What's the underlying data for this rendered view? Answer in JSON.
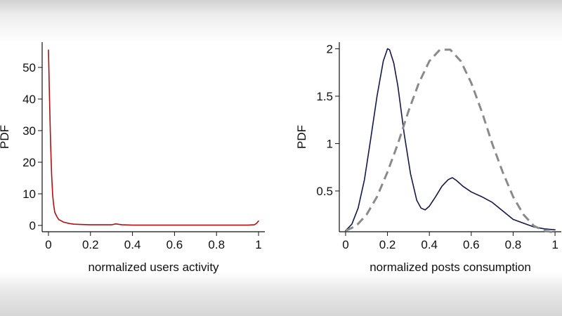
{
  "chart_data": [
    {
      "type": "line",
      "xlabel": "normalized users activity",
      "ylabel": "PDF",
      "xlim": [
        -0.03,
        1.03
      ],
      "ylim": [
        -2,
        58
      ],
      "xticks": [
        0,
        0.2,
        0.4,
        0.6,
        0.8,
        1
      ],
      "xtick_labels": [
        "0",
        "0.2",
        "0.4",
        "0.6",
        "0.8",
        "1"
      ],
      "yticks": [
        0,
        10,
        20,
        30,
        40,
        50
      ],
      "ytick_labels": [
        "0",
        "10",
        "20",
        "30",
        "40",
        "50"
      ],
      "grid": false,
      "series": [
        {
          "color": "#b01010",
          "style": "solid",
          "x": [
            0.0,
            0.005,
            0.01,
            0.015,
            0.02,
            0.025,
            0.03,
            0.04,
            0.05,
            0.06,
            0.07,
            0.08,
            0.1,
            0.12,
            0.15,
            0.2,
            0.25,
            0.3,
            0.32,
            0.35,
            0.4,
            0.5,
            0.6,
            0.7,
            0.8,
            0.9,
            0.95,
            0.98,
            0.99,
            1.0
          ],
          "y": [
            55.5,
            40,
            26,
            16,
            9.5,
            6.5,
            4.2,
            2.8,
            1.8,
            1.5,
            1.1,
            0.9,
            0.6,
            0.4,
            0.3,
            0.2,
            0.2,
            0.2,
            0.5,
            0.2,
            0.1,
            0.1,
            0.1,
            0.1,
            0.1,
            0.1,
            0.1,
            0.2,
            0.6,
            1.4
          ]
        }
      ]
    },
    {
      "type": "line",
      "xlabel": "normalized posts consumption",
      "ylabel": "PDF",
      "xlim": [
        -0.03,
        1.03
      ],
      "ylim": [
        0.07,
        2.07
      ],
      "xticks": [
        0,
        0.2,
        0.4,
        0.6,
        0.8,
        1
      ],
      "xtick_labels": [
        "0",
        "0.2",
        "0.4",
        "0.6",
        "0.8",
        "1"
      ],
      "yticks": [
        0.5,
        1,
        1.5,
        2
      ],
      "ytick_labels": [
        "0.5",
        "1",
        "1.5",
        "2"
      ],
      "grid": false,
      "series": [
        {
          "color": "#14184a",
          "style": "solid",
          "x": [
            0.0,
            0.03,
            0.06,
            0.09,
            0.12,
            0.15,
            0.18,
            0.2,
            0.21,
            0.23,
            0.25,
            0.28,
            0.31,
            0.34,
            0.36,
            0.38,
            0.4,
            0.43,
            0.46,
            0.49,
            0.51,
            0.53,
            0.56,
            0.6,
            0.65,
            0.7,
            0.75,
            0.8,
            0.85,
            0.9,
            0.95,
            1.0
          ],
          "y": [
            0.08,
            0.15,
            0.32,
            0.62,
            1.05,
            1.5,
            1.87,
            2.0,
            1.99,
            1.85,
            1.6,
            1.1,
            0.68,
            0.4,
            0.32,
            0.3,
            0.34,
            0.44,
            0.55,
            0.62,
            0.64,
            0.61,
            0.55,
            0.49,
            0.44,
            0.38,
            0.29,
            0.2,
            0.16,
            0.12,
            0.1,
            0.09
          ]
        },
        {
          "color": "#8a8a8a",
          "style": "dashed",
          "x": [
            0.0,
            0.05,
            0.1,
            0.15,
            0.2,
            0.25,
            0.3,
            0.35,
            0.4,
            0.45,
            0.5,
            0.55,
            0.6,
            0.65,
            0.7,
            0.75,
            0.8,
            0.85,
            0.9,
            0.95,
            1.0
          ],
          "y": [
            0.08,
            0.13,
            0.25,
            0.44,
            0.7,
            1.0,
            1.34,
            1.64,
            1.87,
            1.99,
            1.99,
            1.87,
            1.64,
            1.34,
            1.0,
            0.7,
            0.44,
            0.25,
            0.13,
            0.08,
            0.06
          ]
        }
      ]
    }
  ]
}
